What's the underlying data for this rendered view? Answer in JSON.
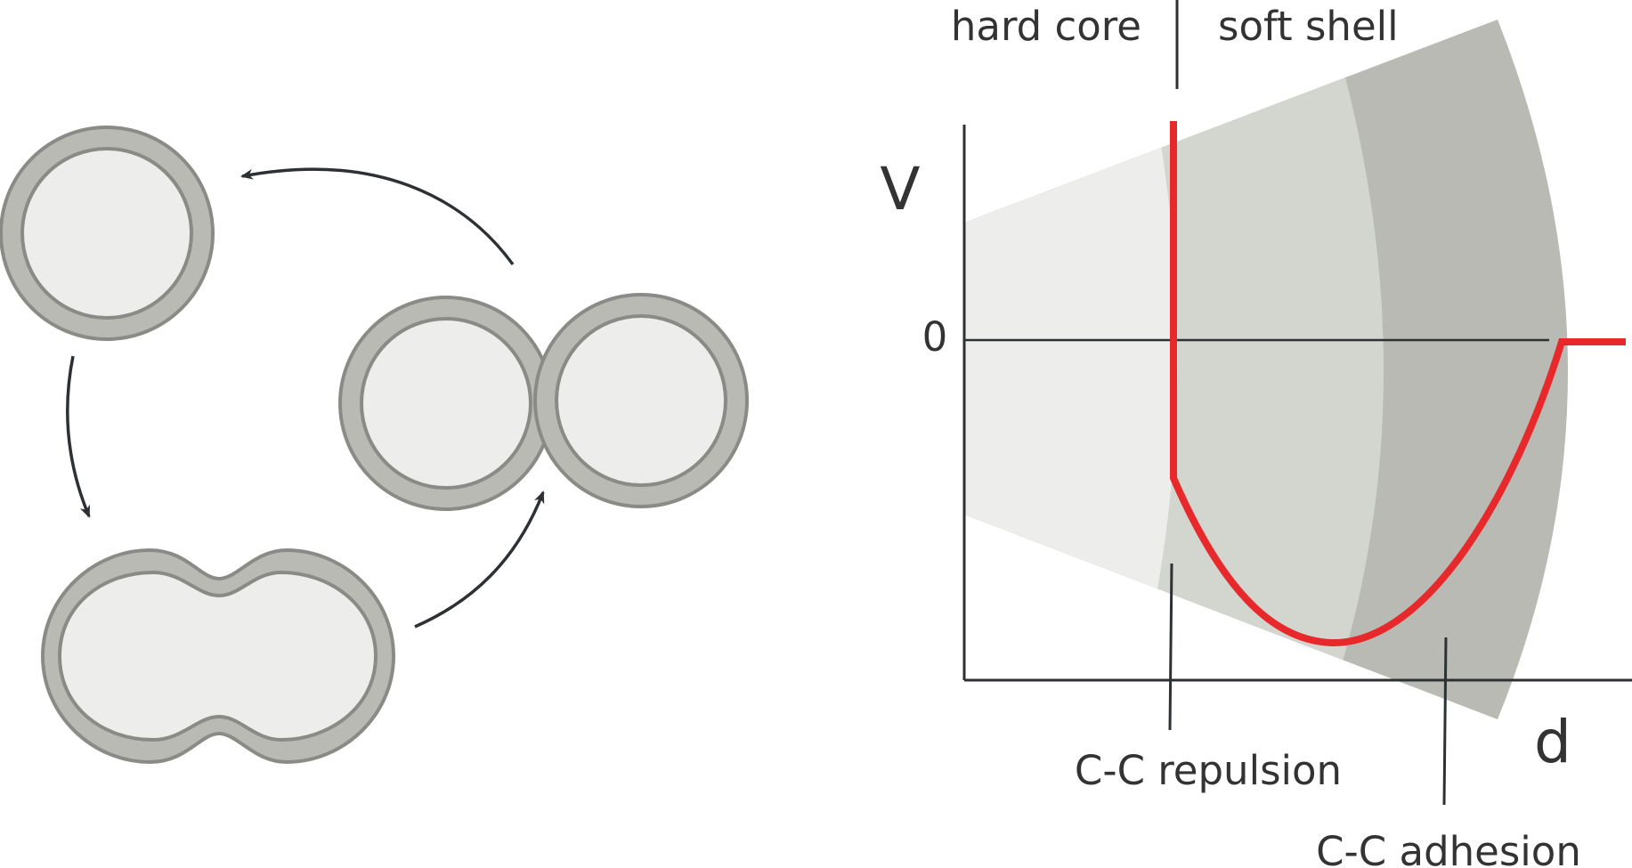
{
  "diagram": {
    "core_label": "hard core",
    "shell_label": "soft shell",
    "y_axis_label": "V",
    "x_axis_label": "d",
    "zero_label": "0",
    "repulsion_label": "C-C repulsion",
    "adhesion_label": "C-C adhesion",
    "potential_color": "#E8292C",
    "shell_fill": "#B9BAB3",
    "core_fill": "#EDEDEB",
    "outline_color": "#8A8B86",
    "arrow_color": "#2D3133"
  }
}
